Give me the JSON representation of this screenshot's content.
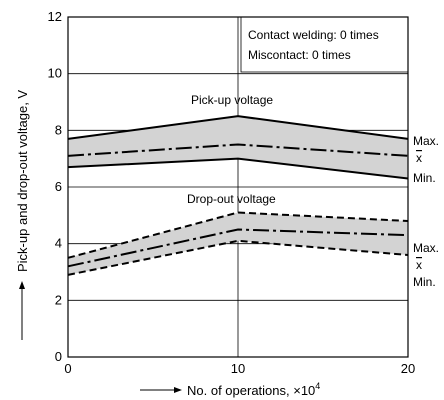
{
  "chart_data": {
    "type": "line",
    "xlabel": "No. of operations, ×10",
    "xlabel_exp": "4",
    "ylabel": "Pick-up and drop-out voltage, V",
    "xlim": [
      0,
      20
    ],
    "ylim": [
      0,
      12
    ],
    "x_ticks": [
      "0",
      "10",
      "20"
    ],
    "y_ticks": [
      "0",
      "2",
      "4",
      "6",
      "8",
      "10",
      "12"
    ],
    "grid": true,
    "annotations": [
      "Contact welding: 0 times",
      "Miscontact: 0 times"
    ],
    "groups": [
      {
        "label": "Pick-up voltage",
        "line_style": "solid",
        "x": [
          0,
          10,
          20
        ],
        "max": [
          7.7,
          8.5,
          7.7
        ],
        "mean": [
          7.1,
          7.5,
          7.1
        ],
        "min": [
          6.7,
          7.0,
          6.3
        ]
      },
      {
        "label": "Drop-out voltage",
        "line_style": "dashed",
        "x": [
          0,
          10,
          20
        ],
        "max": [
          3.5,
          5.1,
          4.8
        ],
        "mean": [
          3.2,
          4.5,
          4.3
        ],
        "min": [
          2.9,
          4.1,
          3.6
        ]
      }
    ],
    "edge_labels": {
      "max": "Max.",
      "mean": "x",
      "min": "Min."
    }
  }
}
